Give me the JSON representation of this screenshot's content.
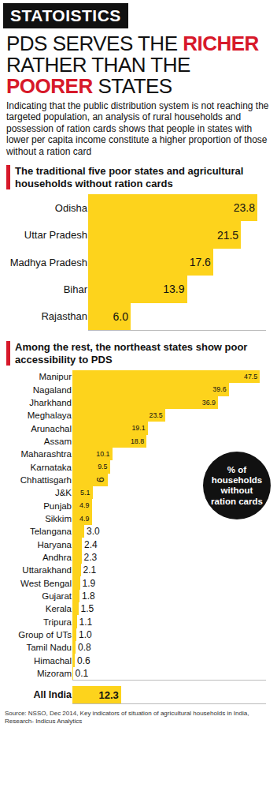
{
  "banner": "STATOISTICS",
  "title": "PDS SERVES THE RICHER RATHER THAN THE POORER STATES",
  "highlight": [
    "RICHER",
    "POORER"
  ],
  "subtitle": "Indicating that the public distribution system is not reaching the targeted population, an analysis of rural households and possession of ration cards shows that people in states with lower per capita income constitute a higher proportion of those without a ration card",
  "source": "Source: NSSO, Dec 2014, Key indicators of situation of agricultural households in India, Research- Indicus Analytics",
  "chart_data": [
    {
      "type": "bar",
      "orientation": "horizontal",
      "title": "The traditional five poor states and agricultural households without ration cards",
      "categories": [
        "Odisha",
        "Uttar Pradesh",
        "Madhya Pradesh",
        "Bihar",
        "Rajasthan"
      ],
      "values": [
        23.8,
        21.5,
        17.6,
        13.9,
        6.0
      ],
      "value_labels": [
        "23.8",
        "21.5",
        "17.6",
        "13.9",
        "6.0"
      ],
      "color": "#fdd31c",
      "xlim": [
        0,
        25
      ],
      "data_labels": true,
      "tick_labels": "y"
    },
    {
      "type": "bar",
      "orientation": "horizontal",
      "title": "Among the rest, the northeast states show poor accessibility to PDS",
      "annotation": "% of households without ration cards",
      "categories": [
        "Manipur",
        "Nagaland",
        "Jharkhand",
        "Meghalaya",
        "Arunachal",
        "Assam",
        "Maharashtra",
        "Karnataka",
        "Chhattisgarh",
        "J&K",
        "Punjab",
        "Sikkim",
        "Telangana",
        "Haryana",
        "Andhra",
        "Uttarakhand",
        "West Bengal",
        "Gujarat",
        "Kerala",
        "Tripura",
        "Group of UTs",
        "Tamil Nadu",
        "Himachal",
        "Mizoram"
      ],
      "values": [
        47.5,
        39.6,
        36.9,
        23.5,
        19.1,
        18.8,
        10.1,
        9.5,
        9,
        5.1,
        4.9,
        4.9,
        3.0,
        2.4,
        2.3,
        2.1,
        1.9,
        1.8,
        1.5,
        1.1,
        1.0,
        0.8,
        0.6,
        0.1
      ],
      "value_labels": [
        "47.5",
        "39.6",
        "36.9",
        "23.5",
        "19.1",
        "18.8",
        "10.1",
        "9.5",
        "9",
        "5.1",
        "4.9",
        "4.9",
        "3.0",
        "2.4",
        "2.3",
        "2.1",
        "1.9",
        "1.8",
        "1.5",
        "1.1",
        "1.0",
        "0.8",
        "0.6",
        "0.1"
      ],
      "color": "#fdd31c",
      "xlim": [
        0,
        49
      ],
      "data_labels": true,
      "tick_labels": "y"
    },
    {
      "type": "bar",
      "orientation": "horizontal",
      "categories": [
        "All India"
      ],
      "values": [
        12.3
      ],
      "value_labels": [
        "12.3"
      ],
      "color": "#fdd31c",
      "xlim": [
        0,
        49
      ],
      "data_labels": true,
      "tick_labels": "y"
    }
  ]
}
